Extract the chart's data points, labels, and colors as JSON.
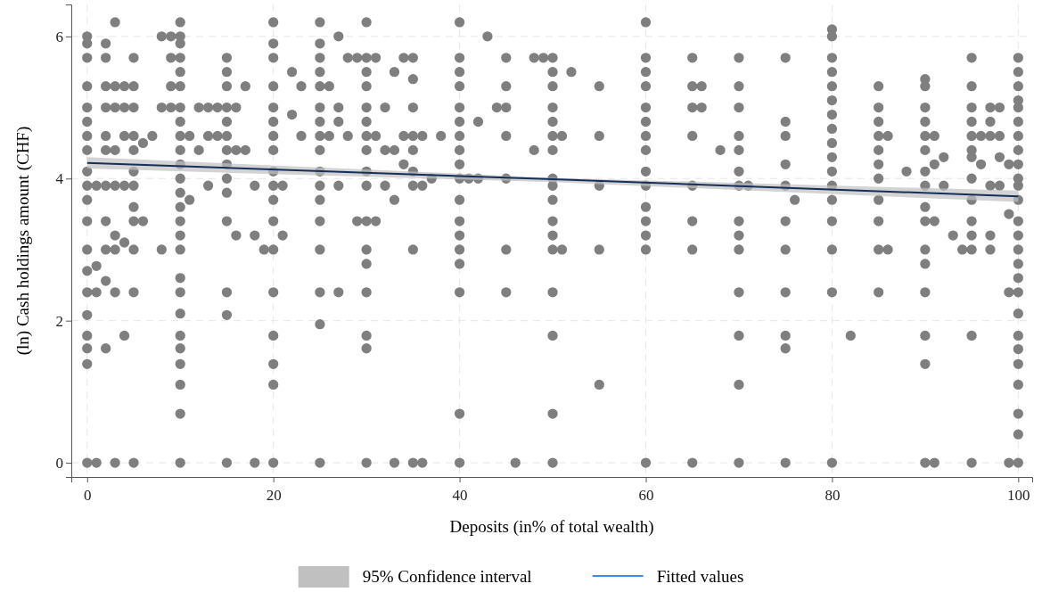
{
  "chart_data": {
    "type": "scatter",
    "xlabel": "Deposits (in% of total wealth)",
    "ylabel": "(ln) Cash holdings amount (CHF)",
    "xlim": [
      -1.7,
      101.5
    ],
    "ylim": [
      -0.2,
      6.45
    ],
    "xticks": [
      0,
      20,
      40,
      60,
      80,
      100
    ],
    "yticks": [
      0,
      2,
      4,
      6
    ],
    "grid": true,
    "legend": "bottom",
    "series": [
      {
        "color": "#7f7f7f",
        "marker": "circle",
        "x": [
          0,
          0,
          0,
          0,
          0,
          0,
          0,
          0,
          0,
          0,
          0,
          0,
          0,
          0,
          0,
          0,
          0,
          0,
          0,
          0,
          1,
          1,
          1,
          1,
          2,
          2,
          2,
          2,
          2,
          2,
          2,
          2,
          2,
          2,
          2,
          3,
          3,
          3,
          3,
          3,
          3,
          3,
          3,
          3,
          4,
          4,
          4,
          4,
          4,
          4,
          5,
          5,
          5,
          5,
          5,
          5,
          5,
          5,
          5,
          5,
          5,
          5,
          6,
          6,
          7,
          8,
          8,
          8,
          9,
          9,
          9,
          9,
          10,
          10,
          10,
          10,
          10,
          10,
          10,
          10,
          10,
          10,
          10,
          10,
          10,
          10,
          10,
          10,
          10,
          10,
          10,
          10,
          10,
          10,
          10,
          10,
          10,
          10,
          11,
          11,
          12,
          12,
          13,
          13,
          13,
          14,
          14,
          15,
          15,
          15,
          15,
          15,
          15,
          15,
          15,
          15,
          15,
          15,
          15,
          15,
          15,
          16,
          16,
          16,
          17,
          17,
          18,
          18,
          18,
          19,
          20,
          20,
          20,
          20,
          20,
          20,
          20,
          20,
          20,
          20,
          20,
          20,
          20,
          20,
          20,
          20,
          20,
          20,
          21,
          21,
          22,
          22,
          23,
          23,
          25,
          25,
          25,
          25,
          25,
          25,
          25,
          25,
          25,
          25,
          25,
          25,
          25,
          25,
          25,
          25,
          25,
          26,
          26,
          27,
          27,
          27,
          27,
          27,
          28,
          28,
          29,
          29,
          30,
          30,
          30,
          30,
          30,
          30,
          30,
          30,
          30,
          30,
          30,
          30,
          30,
          30,
          30,
          30,
          30,
          31,
          31,
          31,
          32,
          32,
          32,
          33,
          33,
          33,
          33,
          34,
          34,
          34,
          35,
          35,
          35,
          35,
          35,
          35,
          35,
          35,
          35,
          36,
          36,
          36,
          37,
          38,
          40,
          40,
          40,
          40,
          40,
          40,
          40,
          40,
          40,
          40,
          40,
          40,
          40,
          40,
          40,
          40,
          40,
          40,
          41,
          42,
          42,
          43,
          44,
          45,
          45,
          45,
          45,
          45,
          45,
          45,
          46,
          48,
          48,
          49,
          50,
          50,
          50,
          50,
          50,
          50,
          50,
          50,
          50,
          50,
          50,
          50,
          50,
          50,
          50,
          50,
          50,
          51,
          51,
          52,
          55,
          55,
          55,
          55,
          55,
          60,
          60,
          60,
          60,
          60,
          60,
          60,
          60,
          60,
          60,
          60,
          60,
          60,
          60,
          60,
          65,
          65,
          65,
          65,
          65,
          65,
          65,
          65,
          66,
          66,
          68,
          70,
          70,
          70,
          70,
          70,
          70,
          70,
          70,
          70,
          70,
          70,
          70,
          70,
          70,
          71,
          75,
          75,
          75,
          75,
          75,
          75,
          75,
          75,
          75,
          75,
          75,
          76,
          80,
          80,
          80,
          80,
          80,
          80,
          80,
          80,
          80,
          80,
          80,
          80,
          80,
          80,
          80,
          80,
          80,
          82,
          85,
          85,
          85,
          85,
          85,
          85,
          85,
          85,
          85,
          85,
          85,
          86,
          86,
          88,
          90,
          90,
          90,
          90,
          90,
          90,
          90,
          90,
          90,
          90,
          90,
          90,
          90,
          90,
          90,
          90,
          91,
          91,
          91,
          91,
          92,
          92,
          93,
          94,
          95,
          95,
          95,
          95,
          95,
          95,
          95,
          95,
          95,
          95,
          95,
          95,
          95,
          95,
          96,
          96,
          97,
          97,
          97,
          97,
          97,
          97,
          98,
          98,
          98,
          98,
          99,
          99,
          99,
          99,
          100,
          100,
          100,
          100,
          100,
          100,
          100,
          100,
          100,
          100,
          100,
          100,
          100,
          100,
          100,
          100,
          100,
          100,
          100,
          100,
          100,
          100,
          100,
          100,
          100,
          100
        ],
        "values": [
          6.0,
          5.9,
          5.7,
          5.3,
          5.0,
          4.8,
          4.6,
          4.4,
          4.1,
          3.9,
          3.7,
          3.4,
          3.0,
          2.7,
          2.4,
          2.08,
          1.79,
          1.61,
          1.39,
          0,
          3.9,
          2.77,
          2.4,
          0,
          5.9,
          5.7,
          5.3,
          5.0,
          4.6,
          4.4,
          3.9,
          3.4,
          3.0,
          2.56,
          1.61,
          6.2,
          5.3,
          5.0,
          4.4,
          3.9,
          3.2,
          3.0,
          2.4,
          0,
          5.3,
          5.0,
          4.6,
          3.9,
          3.1,
          1.79,
          5.7,
          5.3,
          5.0,
          4.6,
          4.4,
          4.1,
          3.9,
          3.6,
          3.4,
          3.0,
          2.4,
          0,
          4.5,
          3.4,
          4.6,
          6.0,
          5.0,
          3.0,
          6.0,
          5.7,
          5.3,
          5.0,
          6.2,
          6.0,
          5.9,
          5.7,
          5.5,
          5.3,
          5.0,
          4.8,
          4.6,
          4.4,
          4.2,
          4.0,
          3.8,
          3.6,
          3.4,
          3.2,
          3.0,
          2.6,
          2.4,
          2.1,
          1.79,
          1.61,
          1.39,
          1.1,
          0.69,
          0,
          4.6,
          3.7,
          5.0,
          4.4,
          5.0,
          4.6,
          3.9,
          5.0,
          4.6,
          5.7,
          5.5,
          5.3,
          5.0,
          4.8,
          4.6,
          4.4,
          4.2,
          4.0,
          3.8,
          3.4,
          2.4,
          2.08,
          0,
          5.0,
          4.4,
          3.2,
          5.3,
          4.4,
          3.9,
          3.2,
          0,
          3.0,
          6.2,
          5.9,
          5.7,
          5.3,
          5.0,
          4.8,
          4.6,
          4.4,
          4.1,
          3.9,
          3.7,
          3.4,
          3.0,
          2.4,
          1.79,
          1.39,
          1.1,
          0,
          3.9,
          3.2,
          5.5,
          4.9,
          5.3,
          4.6,
          6.2,
          5.9,
          5.7,
          5.5,
          5.3,
          5.0,
          4.8,
          4.6,
          4.4,
          4.1,
          3.9,
          3.7,
          3.4,
          3.0,
          2.4,
          1.95,
          0,
          5.3,
          4.6,
          6.0,
          5.0,
          4.8,
          3.9,
          2.4,
          5.7,
          4.6,
          5.7,
          3.4,
          6.2,
          5.7,
          5.5,
          5.3,
          5.0,
          4.8,
          4.6,
          4.4,
          4.1,
          3.9,
          3.4,
          3.0,
          2.8,
          2.4,
          1.79,
          1.61,
          0,
          5.7,
          4.6,
          3.4,
          5.0,
          4.4,
          3.9,
          5.5,
          4.4,
          3.7,
          0,
          5.7,
          4.6,
          4.2,
          5.7,
          5.4,
          5.0,
          4.6,
          4.4,
          4.1,
          3.9,
          3.0,
          0,
          4.6,
          3.9,
          0,
          4.0,
          4.6,
          6.2,
          5.7,
          5.5,
          5.3,
          5.0,
          4.8,
          4.6,
          4.4,
          4.2,
          4.0,
          3.7,
          3.4,
          3.2,
          3.0,
          2.8,
          2.4,
          0.69,
          0,
          4.0,
          4.8,
          4.0,
          6.0,
          5.0,
          5.7,
          5.3,
          5.0,
          4.6,
          4.0,
          3.0,
          2.4,
          0,
          5.7,
          4.4,
          5.7,
          5.7,
          5.5,
          5.3,
          5.0,
          4.8,
          4.6,
          4.4,
          4.0,
          3.9,
          3.7,
          3.4,
          3.2,
          3.0,
          2.4,
          1.79,
          0.69,
          0,
          4.6,
          3.0,
          5.5,
          5.3,
          4.6,
          3.9,
          3.0,
          1.1,
          6.2,
          5.7,
          5.5,
          5.3,
          5.0,
          4.8,
          4.6,
          4.4,
          4.1,
          3.9,
          3.6,
          3.4,
          3.2,
          3.0,
          0,
          5.7,
          5.3,
          5.0,
          4.6,
          3.9,
          3.4,
          3.0,
          0,
          5.3,
          5.0,
          4.4,
          5.7,
          5.3,
          5.0,
          4.6,
          4.4,
          4.1,
          3.9,
          3.4,
          3.2,
          3.0,
          2.4,
          1.79,
          1.1,
          0,
          3.9,
          5.7,
          4.8,
          4.6,
          4.2,
          3.9,
          3.4,
          3.0,
          2.4,
          1.79,
          1.61,
          0,
          3.7,
          6.1,
          6.0,
          5.7,
          5.5,
          5.3,
          5.1,
          4.9,
          4.7,
          4.5,
          4.3,
          4.1,
          3.9,
          3.7,
          3.4,
          3.0,
          2.4,
          0,
          1.79,
          5.3,
          5.0,
          4.8,
          4.6,
          4.4,
          4.2,
          4.0,
          3.7,
          3.4,
          3.0,
          2.4,
          4.6,
          3.0,
          4.1,
          5.4,
          5.3,
          5.0,
          4.8,
          4.6,
          4.4,
          4.1,
          3.9,
          3.6,
          3.4,
          3.0,
          2.8,
          2.4,
          1.79,
          1.39,
          0,
          4.6,
          4.2,
          3.4,
          0,
          4.3,
          3.9,
          3.2,
          3.0,
          5.7,
          5.3,
          5.0,
          4.8,
          4.6,
          4.4,
          4.3,
          4.0,
          3.7,
          3.4,
          3.2,
          3.0,
          1.79,
          0,
          4.6,
          4.2,
          5.0,
          4.8,
          4.6,
          3.9,
          3.2,
          3.0,
          5.0,
          4.6,
          4.3,
          3.9,
          4.2,
          3.5,
          2.4,
          0,
          5.7,
          5.5,
          5.3,
          5.1,
          5.0,
          4.8,
          4.6,
          4.4,
          4.2,
          4.0,
          3.9,
          3.7,
          3.4,
          3.2,
          3.0,
          2.8,
          2.6,
          2.4,
          2.1,
          1.79,
          1.6,
          1.39,
          1.1,
          0.69,
          0.4,
          0
        ]
      },
      {
        "type": "line",
        "name": "Fitted values",
        "color": "#14305a",
        "x": [
          0,
          50,
          100
        ],
        "values": [
          4.22,
          3.99,
          3.75
        ],
        "lower": [
          4.14,
          3.95,
          3.67
        ],
        "upper": [
          4.3,
          4.01,
          3.83
        ]
      }
    ],
    "annotations": [
      "95% Confidence interval"
    ]
  }
}
